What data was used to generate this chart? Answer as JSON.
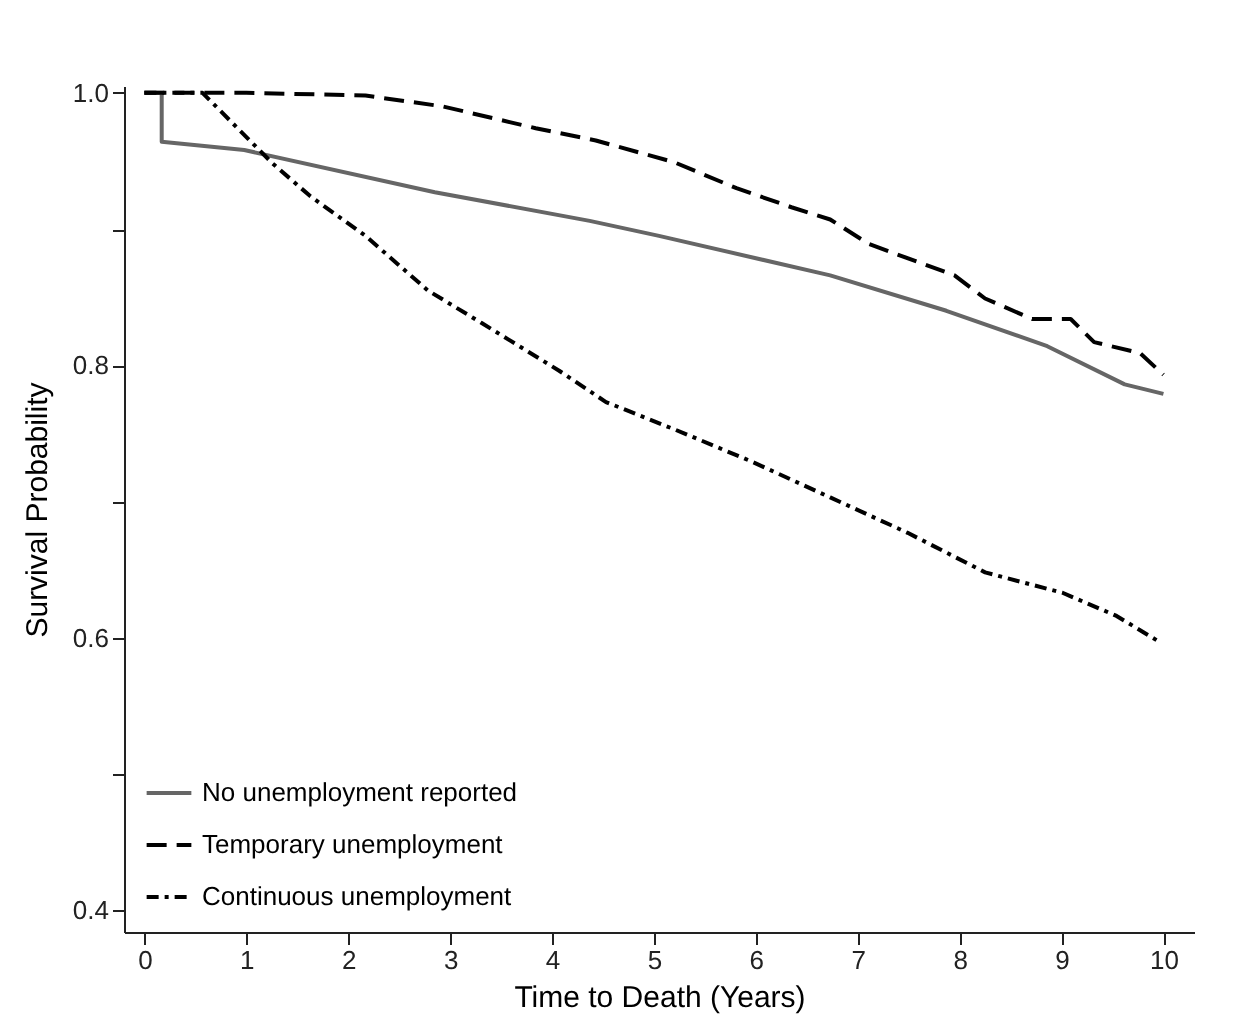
{
  "chart_data": {
    "type": "line",
    "xlabel": "Time to Death (Years)",
    "ylabel": "Survival Probability",
    "xlim": [
      -0.2,
      10.3
    ],
    "xticks": [
      0,
      1,
      2,
      3,
      4,
      5,
      6,
      7,
      8,
      9,
      10
    ],
    "ylim": [
      0.384,
      1.005
    ],
    "yticks": [
      {
        "value": 0.4,
        "label": "0.4"
      },
      {
        "value": 0.5,
        "label": null
      },
      {
        "value": 0.6,
        "label": "0.6"
      },
      {
        "value": 0.7,
        "label": null
      },
      {
        "value": 0.8,
        "label": "0.8"
      },
      {
        "value": 0.9,
        "label": null
      },
      {
        "value": 1.0,
        "label": "1.0"
      }
    ],
    "grid": false,
    "legend": "bottom left",
    "marker": "none",
    "series": [
      {
        "name": "No unemployment reported",
        "color": "#666666",
        "line_style": "solid",
        "x": [
          0,
          0.17,
          0.17,
          0.98,
          2.85,
          4.37,
          5.05,
          6.73,
          7.87,
          8.86,
          9.62,
          10
        ],
        "values": [
          1.0,
          1.0,
          0.964,
          0.958,
          0.927,
          0.906,
          0.895,
          0.866,
          0.84,
          0.814,
          0.786,
          0.779
        ]
      },
      {
        "name": "Temporary unemployment",
        "color": "#000000",
        "line_style": "dashed",
        "x": [
          0,
          1,
          2.17,
          2.93,
          3.84,
          4.43,
          5.2,
          5.81,
          6.35,
          6.73,
          7.11,
          7.95,
          8.25,
          8.71,
          9.09,
          9.32,
          9.77,
          10
        ],
        "values": [
          1.0,
          1.0,
          0.998,
          0.99,
          0.974,
          0.965,
          0.949,
          0.93,
          0.916,
          0.907,
          0.889,
          0.866,
          0.849,
          0.834,
          0.834,
          0.817,
          0.809,
          0.793
        ]
      },
      {
        "name": "Continuous unemployment",
        "color": "#000000",
        "line_style": "dashdot",
        "x": [
          0,
          0.57,
          1.26,
          1.63,
          2.17,
          2.78,
          3.31,
          4.07,
          4.53,
          5.2,
          5.97,
          6.73,
          7.49,
          8.25,
          8.4,
          9.01,
          9.54,
          9.96
        ],
        "values": [
          1.0,
          1.0,
          0.948,
          0.924,
          0.895,
          0.855,
          0.831,
          0.796,
          0.773,
          0.753,
          0.729,
          0.703,
          0.677,
          0.648,
          0.645,
          0.633,
          0.616,
          0.597
        ]
      }
    ]
  }
}
